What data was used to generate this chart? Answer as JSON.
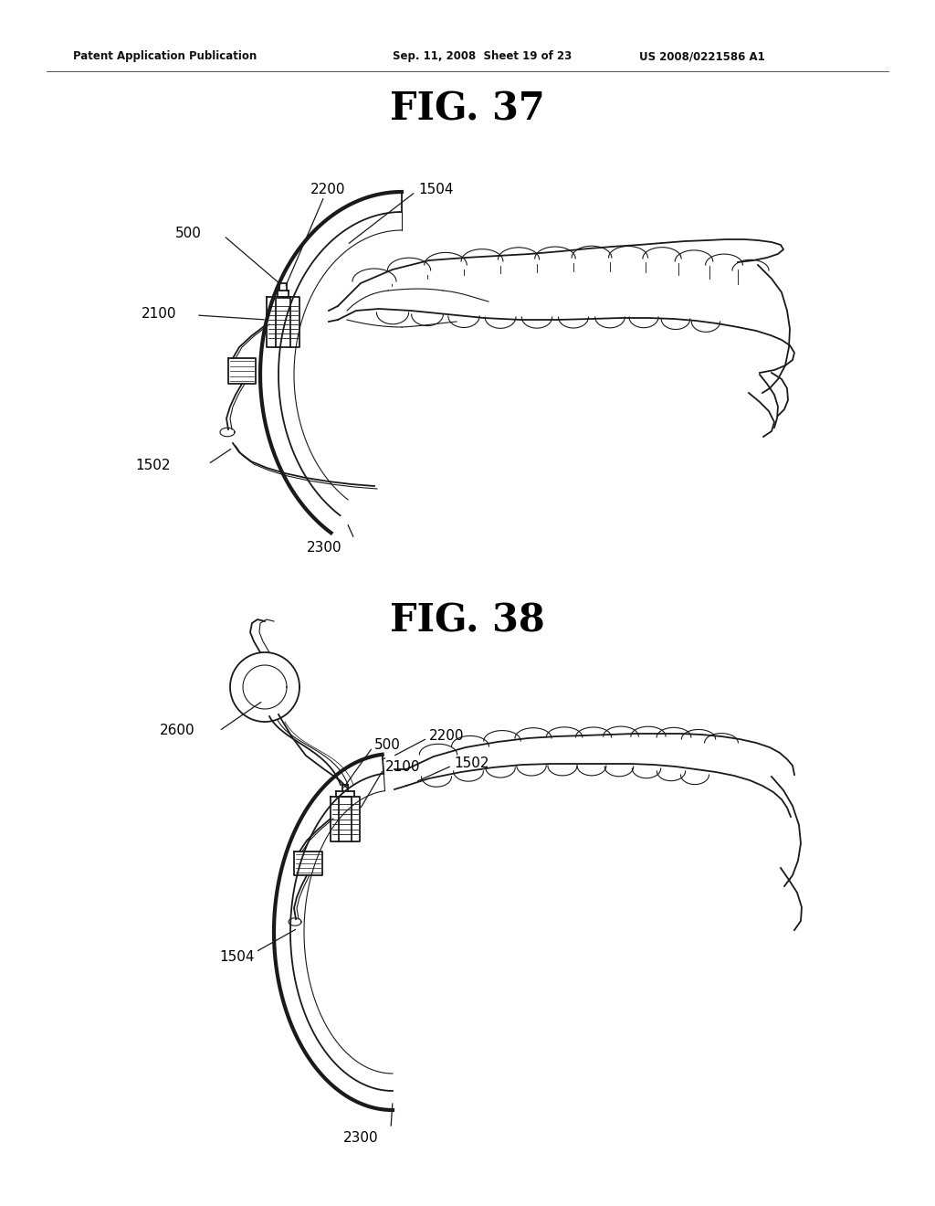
{
  "bg_color": "#ffffff",
  "header_text": "Patent Application Publication",
  "header_date": "Sep. 11, 2008  Sheet 19 of 23",
  "header_patent": "US 2008/0221586 A1",
  "fig37_title": "FIG. 37",
  "fig38_title": "FIG. 38",
  "line_color": "#1a1a1a",
  "lw_main": 1.3,
  "lw_thick": 2.5,
  "lw_thin": 0.8
}
